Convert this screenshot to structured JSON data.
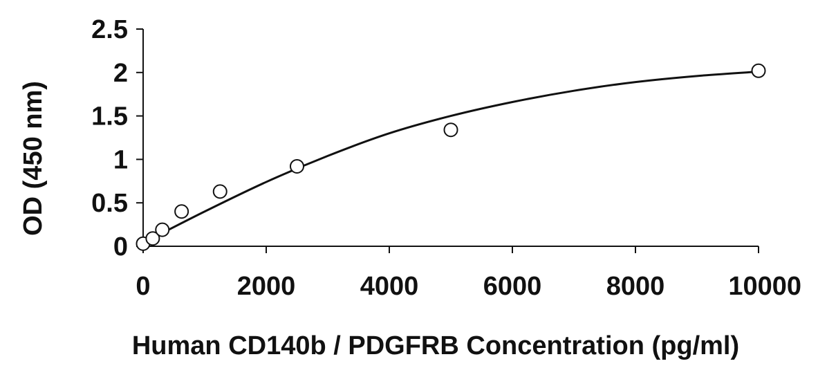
{
  "chart_data": {
    "type": "scatter",
    "title": "",
    "xlabel": "Human CD140b / PDGFRB Concentration (pg/ml)",
    "ylabel": "OD (450 nm)",
    "xlim": [
      0,
      10000
    ],
    "ylim": [
      0,
      2.5
    ],
    "x_ticks": [
      0,
      2000,
      4000,
      6000,
      8000,
      10000
    ],
    "x_tick_labels": [
      "0",
      "2000",
      "4000",
      "6000",
      "8000",
      "10000"
    ],
    "y_ticks": [
      0,
      0.5,
      1,
      1.5,
      2,
      2.5
    ],
    "y_tick_labels": [
      "0",
      "0.5",
      "1",
      "1.5",
      "2",
      "2.5"
    ],
    "grid": false,
    "legend": "none",
    "series": [
      {
        "marker": "open-circle",
        "x": [
          0,
          156,
          312,
          625,
          1250,
          2500,
          5000,
          10000
        ],
        "y": [
          0.03,
          0.09,
          0.19,
          0.4,
          0.63,
          0.92,
          1.34,
          2.02
        ]
      }
    ],
    "fit_curve": {
      "type": "polynomial-fit",
      "x": [
        0,
        1000,
        2000,
        3000,
        4000,
        5000,
        6000,
        7000,
        8000,
        9000,
        10000
      ],
      "y": [
        0.04,
        0.4,
        0.74,
        1.04,
        1.3,
        1.5,
        1.66,
        1.79,
        1.89,
        1.96,
        2.01
      ]
    },
    "colors": {
      "axis": "#111111",
      "marker_stroke": "#111111",
      "marker_fill": "#ffffff",
      "curve": "#111111"
    }
  }
}
